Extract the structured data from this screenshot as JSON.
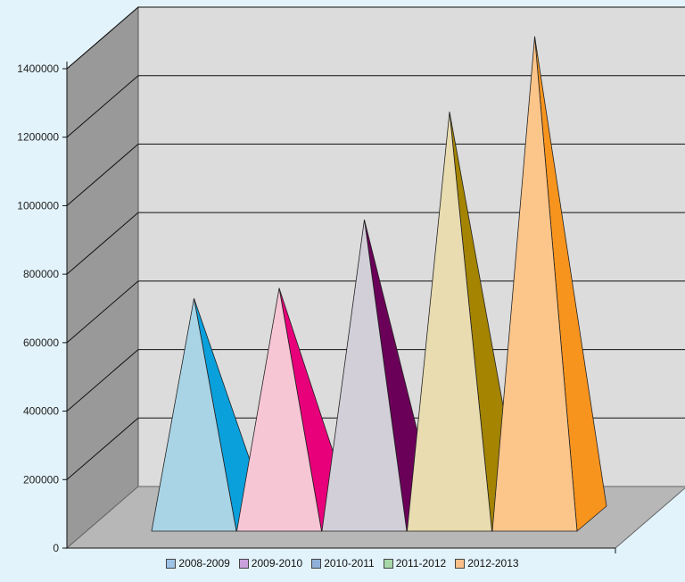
{
  "chart_data": {
    "type": "bar",
    "style": "3d-pyramid",
    "categories": [
      "2008-2009",
      "2009-2010",
      "2010-2011",
      "2011-2012",
      "2012-2013"
    ],
    "values": [
      655000,
      685000,
      885000,
      1200000,
      1420000
    ],
    "title": "",
    "xlabel": "",
    "ylabel": "",
    "ylim": [
      0,
      1400000
    ],
    "yticks": [
      0,
      200000,
      400000,
      600000,
      800000,
      1000000,
      1200000,
      1400000
    ],
    "ytick_labels": [
      "0",
      "200000",
      "400000",
      "600000",
      "800000",
      "1000000",
      "1200000",
      "1400000"
    ],
    "grid": true,
    "legend_position": "bottom",
    "legend": [
      "2008-2009",
      "2009-2010",
      "2010-2011",
      "2011-2012",
      "2012-2013"
    ],
    "colors": {
      "front": [
        "#a8d4e6",
        "#f7c6d5",
        "#d2cfd9",
        "#e8dcb0",
        "#fcc58a"
      ],
      "side": [
        "#0aa0dc",
        "#e8007a",
        "#6a0058",
        "#a48400",
        "#f7941e"
      ],
      "legend": [
        "#9dc3e6",
        "#c9a0dc",
        "#8fb0d8",
        "#a8d8a8",
        "#fbc08a"
      ],
      "back_wall": "#dcdcdc",
      "side_wall": "#999999",
      "floor": "#b7b7b7",
      "background": "#e3f3fb"
    }
  }
}
